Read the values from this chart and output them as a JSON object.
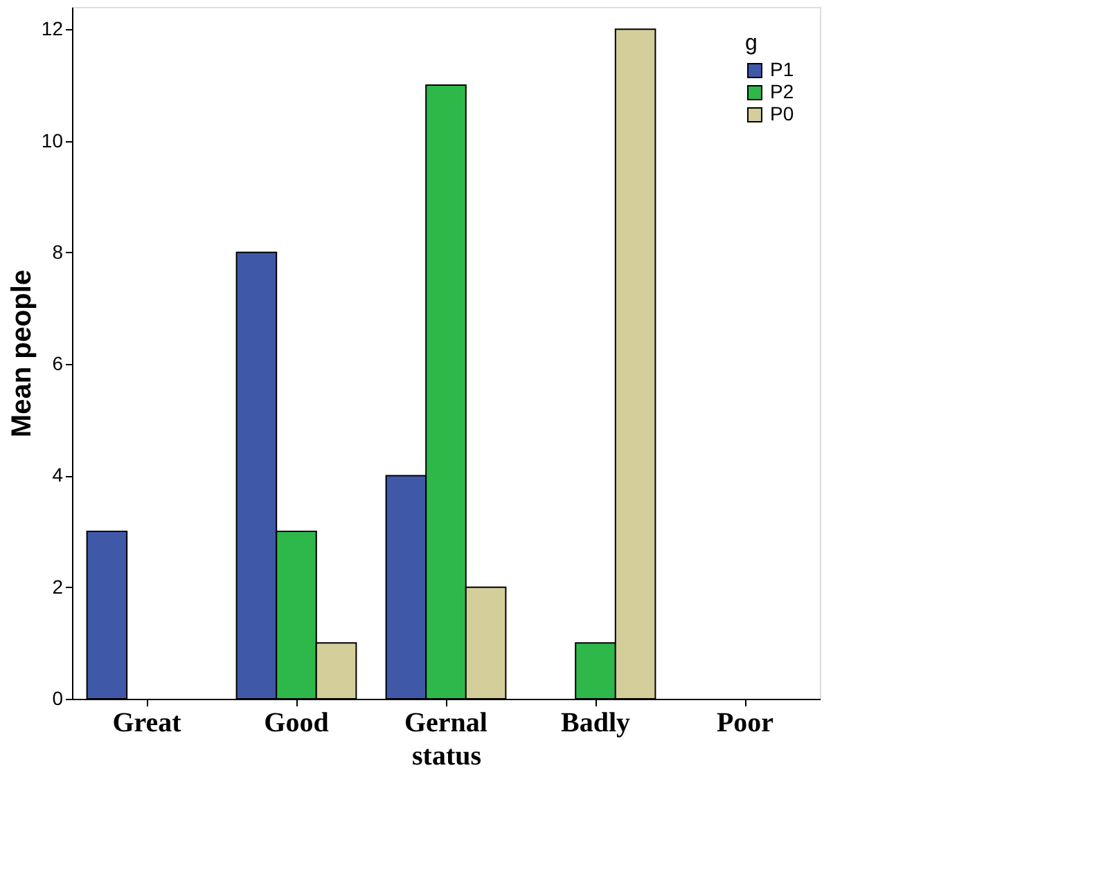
{
  "chart_data": {
    "type": "bar",
    "xlabel": "status",
    "ylabel": "Mean people",
    "legend_title": "g",
    "categories": [
      "Great",
      "Good",
      "Gernal",
      "Badly",
      "Poor"
    ],
    "series": [
      {
        "name": "P1",
        "color": "#3f58a8",
        "values": [
          3,
          8,
          4,
          null,
          null
        ]
      },
      {
        "name": "P2",
        "color": "#2fb84a",
        "values": [
          null,
          3,
          11,
          1,
          null
        ]
      },
      {
        "name": "P0",
        "color": "#d4cf9a",
        "values": [
          null,
          1,
          2,
          12,
          null
        ]
      }
    ],
    "ylim": [
      0,
      12.4
    ],
    "yticks": [
      0,
      2,
      4,
      6,
      8,
      10,
      12
    ],
    "grid": false,
    "legend": "top right"
  }
}
